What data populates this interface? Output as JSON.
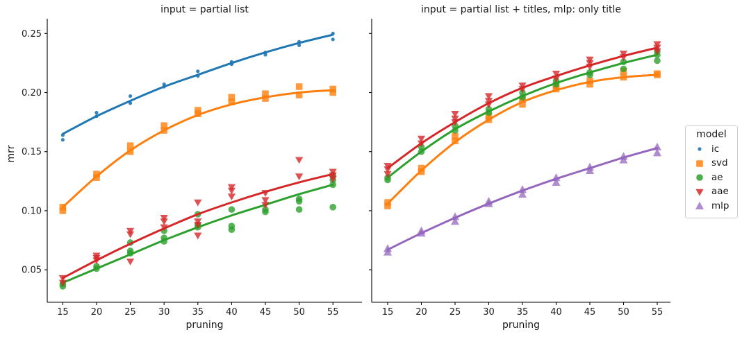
{
  "figure": {
    "ylabel": "mrr",
    "background": "#ffffff",
    "text_color": "#1a1a1a",
    "axis_color": "#000000"
  },
  "legend": {
    "title": "model",
    "position": "center right, outside axes",
    "entries": [
      {
        "label": "ic",
        "marker": "dot",
        "color": "#1f77b4"
      },
      {
        "label": "svd",
        "marker": "square",
        "color": "#ff7f0e"
      },
      {
        "label": "ae",
        "marker": "circle",
        "color": "#2ca02c"
      },
      {
        "label": "aae",
        "marker": "triangle-down",
        "color": "#d62728"
      },
      {
        "label": "mlp",
        "marker": "triangle-up",
        "color": "#9467bd"
      }
    ]
  },
  "chart_data": [
    {
      "type": "scatter",
      "title": "input = partial list",
      "xlabel": "pruning",
      "ylabel": "mrr",
      "grid": false,
      "x_ticks": [
        15,
        20,
        25,
        30,
        35,
        40,
        45,
        50,
        55
      ],
      "x_tick_labels": [
        "15",
        "20",
        "25",
        "30",
        "35",
        "40",
        "45",
        "50",
        "55"
      ],
      "y_ticks": [
        0.05,
        0.1,
        0.15,
        0.2,
        0.25
      ],
      "y_tick_labels": [
        "0.05",
        "0.10",
        "0.15",
        "0.20",
        "0.25"
      ],
      "xlim": [
        12.7,
        59.3
      ],
      "ylim": [
        0.0225,
        0.2625
      ],
      "series": [
        {
          "name": "ic",
          "marker": "dot",
          "color": "#1f77b4",
          "scatter": {
            "15": [
              0.16,
              0.164
            ],
            "20": [
              0.18,
              0.183
            ],
            "25": [
              0.191,
              0.197
            ],
            "30": [
              0.205,
              0.207
            ],
            "35": [
              0.214,
              0.218
            ],
            "40": [
              0.224,
              0.226
            ],
            "45": [
              0.232,
              0.234
            ],
            "50": [
              0.24,
              0.243
            ],
            "55": [
              0.245,
              0.25
            ]
          },
          "trend": [
            0.165,
            0.18,
            0.193,
            0.205,
            0.215,
            0.225,
            0.234,
            0.242,
            0.249
          ]
        },
        {
          "name": "svd",
          "marker": "square",
          "color": "#ff7f0e",
          "scatter": {
            "15": [
              0.1,
              0.103
            ],
            "20": [
              0.128,
              0.131
            ],
            "25": [
              0.15,
              0.155
            ],
            "30": [
              0.168,
              0.172
            ],
            "35": [
              0.182,
              0.185
            ],
            "40": [
              0.192,
              0.196
            ],
            "45": [
              0.195,
              0.199
            ],
            "50": [
              0.198,
              0.205
            ],
            "55": [
              0.2,
              0.203
            ]
          },
          "trend": [
            0.103,
            0.129,
            0.151,
            0.168,
            0.181,
            0.19,
            0.196,
            0.2,
            0.202
          ]
        },
        {
          "name": "ae",
          "marker": "circle",
          "color": "#2ca02c",
          "scatter": {
            "15": [
              0.036,
              0.038
            ],
            "20": [
              0.051,
              0.053
            ],
            "25": [
              0.064,
              0.066,
              0.073
            ],
            "30": [
              0.074,
              0.077,
              0.083
            ],
            "35": [
              0.086,
              0.088,
              0.097
            ],
            "40": [
              0.084,
              0.087,
              0.101
            ],
            "45": [
              0.099,
              0.101
            ],
            "50": [
              0.101,
              0.108,
              0.11
            ],
            "55": [
              0.103,
              0.122,
              0.126,
              0.13
            ]
          },
          "trend": [
            0.039,
            0.051,
            0.063,
            0.075,
            0.086,
            0.096,
            0.105,
            0.114,
            0.122
          ]
        },
        {
          "name": "aae",
          "marker": "triangle-down",
          "color": "#d62728",
          "scatter": {
            "15": [
              0.039,
              0.043
            ],
            "20": [
              0.058,
              0.06,
              0.062
            ],
            "25": [
              0.057,
              0.08,
              0.083
            ],
            "30": [
              0.086,
              0.091,
              0.094
            ],
            "35": [
              0.079,
              0.088,
              0.091,
              0.107
            ],
            "40": [
              0.112,
              0.117,
              0.12
            ],
            "45": [
              0.105,
              0.109,
              0.115
            ],
            "50": [
              0.129,
              0.143
            ],
            "55": [
              0.127,
              0.13,
              0.133
            ]
          },
          "trend": [
            0.043,
            0.058,
            0.072,
            0.085,
            0.097,
            0.107,
            0.116,
            0.124,
            0.131
          ]
        }
      ]
    },
    {
      "type": "scatter",
      "title": "input = partial list + titles, mlp: only title",
      "xlabel": "pruning",
      "ylabel": "mrr",
      "grid": false,
      "x_ticks": [
        15,
        20,
        25,
        30,
        35,
        40,
        45,
        50,
        55
      ],
      "x_tick_labels": [
        "15",
        "20",
        "25",
        "30",
        "35",
        "40",
        "45",
        "50",
        "55"
      ],
      "y_ticks": [
        0.05,
        0.1,
        0.15,
        0.2,
        0.25
      ],
      "y_tick_labels": [],
      "xlim": [
        12.63,
        56.96
      ],
      "ylim": [
        0.0225,
        0.2625
      ],
      "series": [
        {
          "name": "svd",
          "marker": "square",
          "color": "#ff7f0e",
          "scatter": {
            "15": [
              0.104,
              0.107
            ],
            "20": [
              0.133,
              0.136
            ],
            "25": [
              0.159,
              0.163
            ],
            "30": [
              0.177,
              0.18
            ],
            "35": [
              0.19,
              0.194
            ],
            "40": [
              0.203,
              0.206
            ],
            "45": [
              0.207,
              0.21
            ],
            "50": [
              0.213,
              0.218
            ],
            "55": [
              0.215,
              0.216
            ]
          },
          "trend": [
            0.106,
            0.134,
            0.158,
            0.177,
            0.192,
            0.202,
            0.209,
            0.213,
            0.215
          ]
        },
        {
          "name": "ae",
          "marker": "circle",
          "color": "#2ca02c",
          "scatter": {
            "15": [
              0.126,
              0.128
            ],
            "20": [
              0.15,
              0.154
            ],
            "25": [
              0.168,
              0.172
            ],
            "30": [
              0.183,
              0.186
            ],
            "35": [
              0.196,
              0.2
            ],
            "40": [
              0.207,
              0.21
            ],
            "45": [
              0.215,
              0.217
            ],
            "50": [
              0.22,
              0.226
            ],
            "55": [
              0.227,
              0.232,
              0.235
            ]
          },
          "trend": [
            0.128,
            0.15,
            0.169,
            0.184,
            0.197,
            0.208,
            0.217,
            0.225,
            0.232
          ]
        },
        {
          "name": "aae",
          "marker": "triangle-down",
          "color": "#d62728",
          "scatter": {
            "15": [
              0.131,
              0.135,
              0.138
            ],
            "20": [
              0.157,
              0.161
            ],
            "25": [
              0.175,
              0.178,
              0.182
            ],
            "30": [
              0.19,
              0.193,
              0.197
            ],
            "35": [
              0.203,
              0.206
            ],
            "40": [
              0.212,
              0.216
            ],
            "45": [
              0.222,
              0.225,
              0.228
            ],
            "50": [
              0.23,
              0.233
            ],
            "55": [
              0.235,
              0.238,
              0.241
            ]
          },
          "trend": [
            0.136,
            0.157,
            0.175,
            0.191,
            0.204,
            0.214,
            0.223,
            0.231,
            0.238
          ]
        },
        {
          "name": "mlp",
          "marker": "triangle-up",
          "color": "#9467bd",
          "scatter": {
            "15": [
              0.065,
              0.068
            ],
            "20": [
              0.081,
              0.083
            ],
            "25": [
              0.091,
              0.095
            ],
            "30": [
              0.106,
              0.108
            ],
            "35": [
              0.114,
              0.118
            ],
            "40": [
              0.124,
              0.128
            ],
            "45": [
              0.134,
              0.137
            ],
            "50": [
              0.143,
              0.146
            ],
            "55": [
              0.149,
              0.154
            ]
          },
          "trend": [
            0.067,
            0.081,
            0.094,
            0.106,
            0.117,
            0.127,
            0.136,
            0.145,
            0.153
          ]
        }
      ]
    }
  ]
}
